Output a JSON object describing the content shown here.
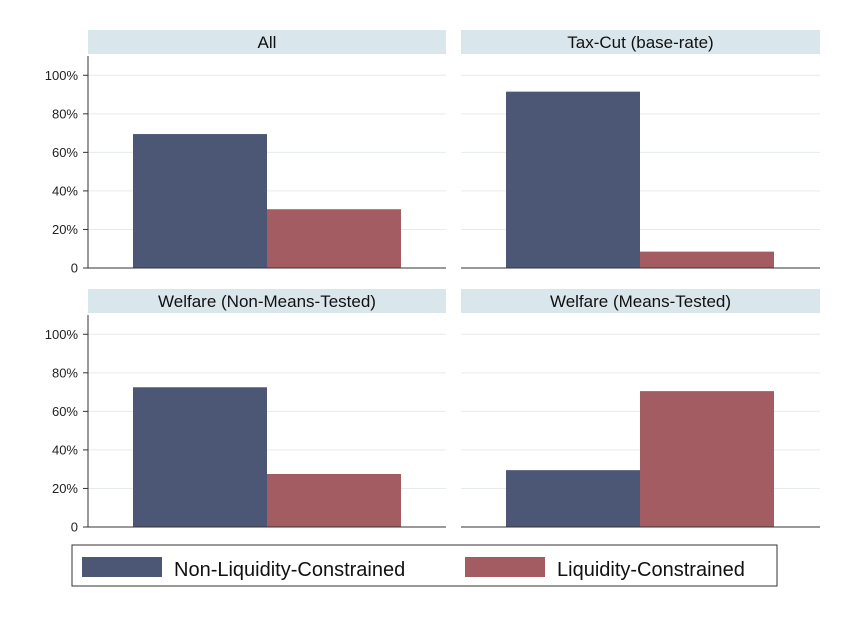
{
  "chart_data": {
    "type": "bar",
    "legend": {
      "placement": "bottom",
      "entries": [
        {
          "label": "Non-Liquidity-Constrained",
          "color": "#4c5675"
        },
        {
          "label": "Liquidity-Constrained",
          "color": "#a35c61"
        }
      ]
    },
    "y_ticks": [
      "0",
      "20%",
      "40%",
      "60%",
      "80%",
      "100%"
    ],
    "y_tick_values": [
      0,
      20,
      40,
      60,
      80,
      100
    ],
    "ylim": [
      0,
      110
    ],
    "grid": true,
    "panels": [
      {
        "title": "All",
        "series": [
          {
            "name": "Non-Liquidity-Constrained",
            "value": 69.5
          },
          {
            "name": "Liquidity-Constrained",
            "value": 30.5
          }
        ]
      },
      {
        "title": "Tax-Cut (base-rate)",
        "series": [
          {
            "name": "Non-Liquidity-Constrained",
            "value": 91.5
          },
          {
            "name": "Liquidity-Constrained",
            "value": 8.5
          }
        ]
      },
      {
        "title": "Welfare (Non-Means-Tested)",
        "series": [
          {
            "name": "Non-Liquidity-Constrained",
            "value": 72.5
          },
          {
            "name": "Liquidity-Constrained",
            "value": 27.5
          }
        ]
      },
      {
        "title": "Welfare (Means-Tested)",
        "series": [
          {
            "name": "Non-Liquidity-Constrained",
            "value": 29.5
          },
          {
            "name": "Liquidity-Constrained",
            "value": 70.5
          }
        ]
      }
    ]
  }
}
